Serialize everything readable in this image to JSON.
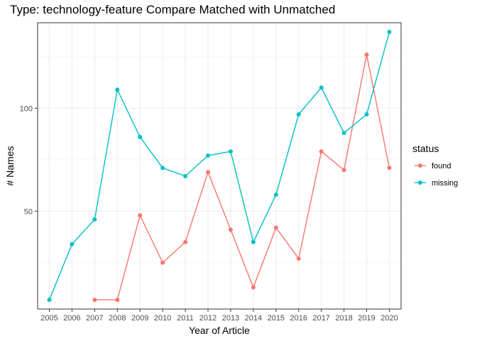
{
  "chart_data": {
    "type": "line",
    "title": "Type: technology-feature Compare Matched with Unmatched",
    "xlabel": "Year of Article",
    "ylabel": "# Names",
    "categories": [
      "2005",
      "2006",
      "2007",
      "2008",
      "2009",
      "2010",
      "2011",
      "2012",
      "2013",
      "2014",
      "2015",
      "2016",
      "2017",
      "2018",
      "2019",
      "2020"
    ],
    "ylim": [
      2.5,
      141.5
    ],
    "yticks": [
      50,
      100
    ],
    "ytick_labels": [
      "50",
      "100"
    ],
    "grid": true,
    "legend": {
      "title": "status",
      "position": "right"
    },
    "series": [
      {
        "name": "found",
        "color": "#F8766D",
        "values": [
          null,
          null,
          7,
          7,
          48,
          25,
          35,
          69,
          41,
          13,
          42,
          27,
          79,
          70,
          126,
          71
        ]
      },
      {
        "name": "missing",
        "color": "#00BFC4",
        "values": [
          7,
          34,
          46,
          109,
          86,
          71,
          67,
          77,
          79,
          35,
          58,
          97,
          110,
          88,
          97,
          137
        ]
      }
    ]
  }
}
